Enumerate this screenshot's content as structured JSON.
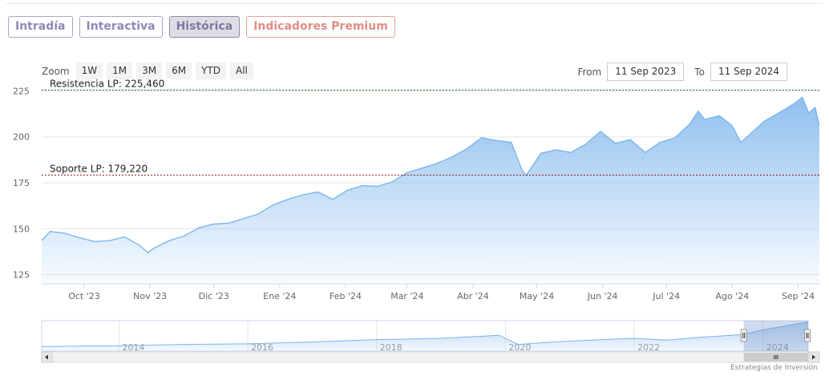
{
  "tabs": [
    {
      "label": "Intradía"
    },
    {
      "label": "Interactiva"
    },
    {
      "label": "Histórica"
    },
    {
      "label": "Indicadores Premium"
    }
  ],
  "zoom": {
    "label": "Zoom",
    "buttons": [
      "1W",
      "1M",
      "3M",
      "6M",
      "YTD",
      "All"
    ]
  },
  "range": {
    "from_label": "From",
    "from_value": "11 Sep 2023",
    "to_label": "To",
    "to_value": "11 Sep 2024"
  },
  "credits": "Estrategias de Inversión",
  "colors": {
    "series": "#7cb5ec",
    "resistance_line": "#2e7d32",
    "support_line": "#8b1a1a"
  },
  "chart_data": {
    "type": "area",
    "ylim": [
      120,
      230
    ],
    "yticks": [
      125,
      150,
      175,
      200,
      225
    ],
    "xtick_labels": [
      "Oct '23",
      "Nov '23",
      "Dic '23",
      "Ene '24",
      "Feb '24",
      "Mar '24",
      "Abr '24",
      "May '24",
      "Jun '24",
      "Jul '24",
      "Ago '24",
      "Sep '24"
    ],
    "xtick_dates": [
      "2023-10-01",
      "2023-11-01",
      "2023-12-01",
      "2024-01-01",
      "2024-02-01",
      "2024-03-01",
      "2024-04-01",
      "2024-05-01",
      "2024-06-01",
      "2024-07-01",
      "2024-08-01",
      "2024-09-01"
    ],
    "x_range": [
      "2023-09-11",
      "2024-09-11"
    ],
    "series": [
      {
        "points": [
          [
            "2023-09-11",
            143.5
          ],
          [
            "2023-09-15",
            148.5
          ],
          [
            "2023-09-22",
            147.5
          ],
          [
            "2023-09-29",
            145.0
          ],
          [
            "2023-10-06",
            143.0
          ],
          [
            "2023-10-13",
            143.5
          ],
          [
            "2023-10-20",
            145.5
          ],
          [
            "2023-10-27",
            141.0
          ],
          [
            "2023-10-31",
            137.0
          ],
          [
            "2023-11-03",
            139.5
          ],
          [
            "2023-11-10",
            143.5
          ],
          [
            "2023-11-17",
            146.0
          ],
          [
            "2023-11-24",
            150.5
          ],
          [
            "2023-12-01",
            152.5
          ],
          [
            "2023-12-08",
            153.0
          ],
          [
            "2023-12-15",
            155.5
          ],
          [
            "2023-12-22",
            158.0
          ],
          [
            "2023-12-29",
            163.0
          ],
          [
            "2024-01-05",
            166.0
          ],
          [
            "2024-01-12",
            168.5
          ],
          [
            "2024-01-19",
            170.0
          ],
          [
            "2024-01-26",
            166.0
          ],
          [
            "2024-02-02",
            171.0
          ],
          [
            "2024-02-09",
            173.5
          ],
          [
            "2024-02-16",
            173.0
          ],
          [
            "2024-02-23",
            175.5
          ],
          [
            "2024-03-01",
            180.5
          ],
          [
            "2024-03-08",
            183.0
          ],
          [
            "2024-03-15",
            185.5
          ],
          [
            "2024-03-22",
            189.0
          ],
          [
            "2024-03-29",
            193.5
          ],
          [
            "2024-04-05",
            199.5
          ],
          [
            "2024-04-12",
            198.0
          ],
          [
            "2024-04-19",
            197.0
          ],
          [
            "2024-04-24",
            182.0
          ],
          [
            "2024-04-26",
            179.0
          ],
          [
            "2024-05-03",
            191.0
          ],
          [
            "2024-05-10",
            193.0
          ],
          [
            "2024-05-17",
            191.5
          ],
          [
            "2024-05-24",
            196.0
          ],
          [
            "2024-05-31",
            203.0
          ],
          [
            "2024-06-07",
            196.5
          ],
          [
            "2024-06-14",
            198.5
          ],
          [
            "2024-06-21",
            191.5
          ],
          [
            "2024-06-28",
            197.0
          ],
          [
            "2024-07-05",
            199.5
          ],
          [
            "2024-07-12",
            207.0
          ],
          [
            "2024-07-16",
            214.0
          ],
          [
            "2024-07-19",
            209.5
          ],
          [
            "2024-07-26",
            211.5
          ],
          [
            "2024-08-01",
            206.0
          ],
          [
            "2024-08-05",
            197.0
          ],
          [
            "2024-08-09",
            201.0
          ],
          [
            "2024-08-16",
            208.5
          ],
          [
            "2024-08-23",
            213.0
          ],
          [
            "2024-08-30",
            218.0
          ],
          [
            "2024-09-03",
            221.5
          ],
          [
            "2024-09-06",
            213.0
          ],
          [
            "2024-09-09",
            216.0
          ],
          [
            "2024-09-11",
            206.0
          ]
        ]
      }
    ],
    "plot_lines": [
      {
        "label": "Resistencia LP: 225,460",
        "value": 225.46
      },
      {
        "label": "Soporte LP: 179,220",
        "value": 179.22
      }
    ],
    "navigator": {
      "year_labels": [
        "2014",
        "2016",
        "2018",
        "2020",
        "2022",
        "2024"
      ],
      "year_values": [
        2014,
        2016,
        2018,
        2020,
        2022,
        2024
      ],
      "x_range": [
        2012.8,
        2024.7
      ],
      "selected_range": [
        2023.7,
        2024.7
      ],
      "points": [
        [
          2012.8,
          0.15
        ],
        [
          2014.0,
          0.18
        ],
        [
          2015.0,
          0.22
        ],
        [
          2016.0,
          0.24
        ],
        [
          2017.0,
          0.3
        ],
        [
          2018.0,
          0.38
        ],
        [
          2019.0,
          0.42
        ],
        [
          2019.9,
          0.52
        ],
        [
          2020.2,
          0.22
        ],
        [
          2020.6,
          0.28
        ],
        [
          2021.0,
          0.33
        ],
        [
          2021.5,
          0.38
        ],
        [
          2022.0,
          0.42
        ],
        [
          2022.5,
          0.36
        ],
        [
          2023.0,
          0.45
        ],
        [
          2023.7,
          0.55
        ],
        [
          2024.0,
          0.7
        ],
        [
          2024.4,
          0.85
        ],
        [
          2024.7,
          0.96
        ]
      ]
    }
  }
}
